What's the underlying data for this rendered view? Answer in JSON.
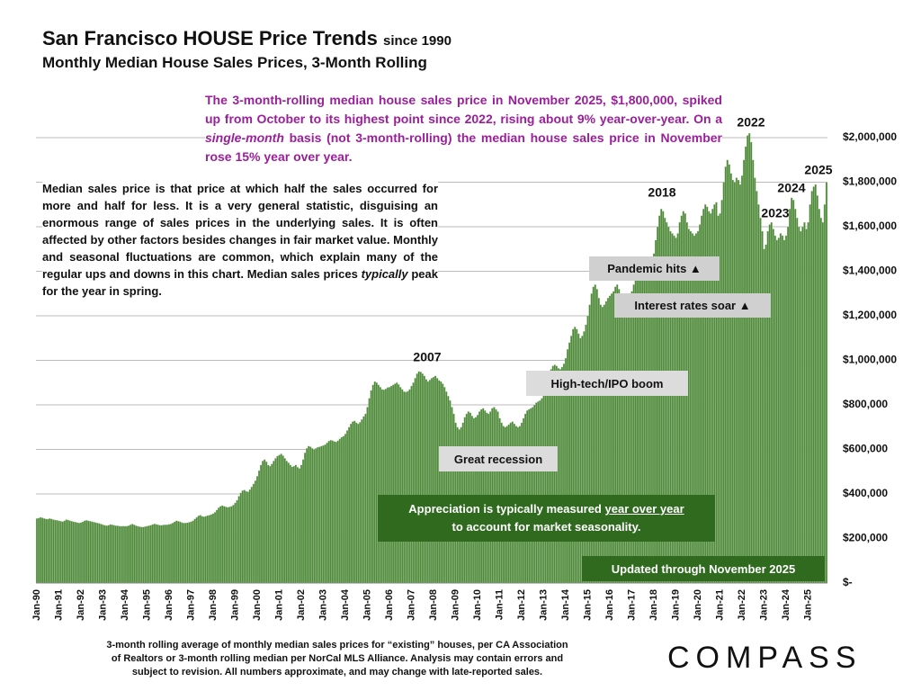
{
  "chart_data": {
    "type": "bar",
    "title": "San Francisco HOUSE Price Trends",
    "title_suffix": "since 1990",
    "subtitle": "Monthly Median House Sales Prices, 3-Month Rolling",
    "color": "#4e8a3a",
    "grid": true,
    "highlight_text": [
      "The 3-month-rolling median house sales price in November 2025, $1,800,000, spiked up from October to its highest point since 2022, rising about 9% year-over-year. On a ",
      "single-month",
      " basis (not 3-month-rolling) the median house sales price in November rose 15% year over year."
    ],
    "note_text": [
      "Median sales price is that price at which half the sales occurred for more and half for less. It is a very general statistic, disguising an enormous range of sales prices in the underlying sales. It is often affected by other factors besides changes in fair market value. Monthly and seasonal fluctuations are common, which explain many of the regular ups and downs in this chart. Median sales prices ",
      "typically",
      " peak for the year in spring."
    ],
    "year_labels": [
      "2007",
      "2018",
      "2022",
      "2023",
      "2024",
      "2025"
    ],
    "callouts": [
      "Pandemic hits ▲",
      "Interest rates soar ▲",
      "High-tech/IPO boom",
      "Great recession"
    ],
    "appreciation_text": [
      "Appreciation is typically measured ",
      "year over year",
      "to account for market seasonality."
    ],
    "updated_text": "Updated through November 2025",
    "footnote": [
      "3-month rolling average of monthly median sales prices for “existing” houses, per CA Association",
      "of Realtors or 3-month rolling median per NorCal MLS Alliance. Analysis may contain errors and",
      "subject to revision. All numbers approximate, and may change with late-reported sales."
    ],
    "brand": "COMPASS",
    "ylim": [
      0,
      2000000
    ],
    "yticks": [
      {
        "value": 0,
        "label": "$-"
      },
      {
        "value": 200000,
        "label": "$200,000"
      },
      {
        "value": 400000,
        "label": "$400,000"
      },
      {
        "value": 600000,
        "label": "$600,000"
      },
      {
        "value": 800000,
        "label": "$800,000"
      },
      {
        "value": 1000000,
        "label": "$1,000,000"
      },
      {
        "value": 1200000,
        "label": "$1,200,000"
      },
      {
        "value": 1400000,
        "label": "$1,400,000"
      },
      {
        "value": 1600000,
        "label": "$1,600,000"
      },
      {
        "value": 1800000,
        "label": "$1,800,000"
      },
      {
        "value": 2000000,
        "label": "$2,000,000"
      }
    ],
    "categories": [
      "Jan-90",
      null,
      null,
      null,
      null,
      null,
      null,
      null,
      null,
      null,
      null,
      null,
      "Jan-91",
      null,
      null,
      null,
      null,
      null,
      null,
      null,
      null,
      null,
      null,
      null,
      "Jan-92",
      null,
      null,
      null,
      null,
      null,
      null,
      null,
      null,
      null,
      null,
      null,
      "Jan-93",
      null,
      null,
      null,
      null,
      null,
      null,
      null,
      null,
      null,
      null,
      null,
      "Jan-94",
      null,
      null,
      null,
      null,
      null,
      null,
      null,
      null,
      null,
      null,
      null,
      "Jan-95",
      null,
      null,
      null,
      null,
      null,
      null,
      null,
      null,
      null,
      null,
      null,
      "Jan-96",
      null,
      null,
      null,
      null,
      null,
      null,
      null,
      null,
      null,
      null,
      null,
      "Jan-97",
      null,
      null,
      null,
      null,
      null,
      null,
      null,
      null,
      null,
      null,
      null,
      "Jan-98",
      null,
      null,
      null,
      null,
      null,
      null,
      null,
      null,
      null,
      null,
      null,
      "Jan-99",
      null,
      null,
      null,
      null,
      null,
      null,
      null,
      null,
      null,
      null,
      null,
      "Jan-00",
      null,
      null,
      null,
      null,
      null,
      null,
      null,
      null,
      null,
      null,
      null,
      "Jan-01",
      null,
      null,
      null,
      null,
      null,
      null,
      null,
      null,
      null,
      null,
      null,
      "Jan-02",
      null,
      null,
      null,
      null,
      null,
      null,
      null,
      null,
      null,
      null,
      null,
      "Jan-03",
      null,
      null,
      null,
      null,
      null,
      null,
      null,
      null,
      null,
      null,
      null,
      "Jan-04",
      null,
      null,
      null,
      null,
      null,
      null,
      null,
      null,
      null,
      null,
      null,
      "Jan-05",
      null,
      null,
      null,
      null,
      null,
      null,
      null,
      null,
      null,
      null,
      null,
      "Jan-06",
      null,
      null,
      null,
      null,
      null,
      null,
      null,
      null,
      null,
      null,
      null,
      "Jan-07",
      null,
      null,
      null,
      null,
      null,
      null,
      null,
      null,
      null,
      null,
      null,
      "Jan-08",
      null,
      null,
      null,
      null,
      null,
      null,
      null,
      null,
      null,
      null,
      null,
      "Jan-09",
      null,
      null,
      null,
      null,
      null,
      null,
      null,
      null,
      null,
      null,
      null,
      "Jan-10",
      null,
      null,
      null,
      null,
      null,
      null,
      null,
      null,
      null,
      null,
      null,
      "Jan-11",
      null,
      null,
      null,
      null,
      null,
      null,
      null,
      null,
      null,
      null,
      null,
      "Jan-12",
      null,
      null,
      null,
      null,
      null,
      null,
      null,
      null,
      null,
      null,
      null,
      "Jan-13",
      null,
      null,
      null,
      null,
      null,
      null,
      null,
      null,
      null,
      null,
      null,
      "Jan-14",
      null,
      null,
      null,
      null,
      null,
      null,
      null,
      null,
      null,
      null,
      null,
      "Jan-15",
      null,
      null,
      null,
      null,
      null,
      null,
      null,
      null,
      null,
      null,
      null,
      "Jan-16",
      null,
      null,
      null,
      null,
      null,
      null,
      null,
      null,
      null,
      null,
      null,
      "Jan-17",
      null,
      null,
      null,
      null,
      null,
      null,
      null,
      null,
      null,
      null,
      null,
      "Jan-18",
      null,
      null,
      null,
      null,
      null,
      null,
      null,
      null,
      null,
      null,
      null,
      "Jan-19",
      null,
      null,
      null,
      null,
      null,
      null,
      null,
      null,
      null,
      null,
      null,
      "Jan-20",
      null,
      null,
      null,
      null,
      null,
      null,
      null,
      null,
      null,
      null,
      null,
      "Jan-21",
      null,
      null,
      null,
      null,
      null,
      null,
      null,
      null,
      null,
      null,
      null,
      "Jan-22",
      null,
      null,
      null,
      null,
      null,
      null,
      null,
      null,
      null,
      null,
      null,
      "Jan-23",
      null,
      null,
      null,
      null,
      null,
      null,
      null,
      null,
      null,
      null,
      null,
      "Jan-24",
      null,
      null,
      null,
      null,
      null,
      null,
      null,
      null,
      null,
      null,
      null,
      "Jan-25",
      null,
      null,
      null,
      null,
      null,
      null,
      null,
      null,
      null,
      null
    ],
    "values": [
      290000,
      292000,
      295000,
      293000,
      290000,
      288000,
      287000,
      290000,
      288000,
      285000,
      283000,
      282000,
      280000,
      278000,
      276000,
      280000,
      285000,
      283000,
      280000,
      278000,
      275000,
      274000,
      272000,
      270000,
      272000,
      275000,
      280000,
      282000,
      280000,
      278000,
      276000,
      274000,
      272000,
      270000,
      268000,
      265000,
      262000,
      260000,
      258000,
      260000,
      263000,
      262000,
      260000,
      258000,
      257000,
      256000,
      255000,
      256000,
      255000,
      256000,
      258000,
      262000,
      265000,
      262000,
      258000,
      255000,
      253000,
      252000,
      252000,
      254000,
      256000,
      258000,
      260000,
      263000,
      266000,
      264000,
      262000,
      260000,
      260000,
      261000,
      262000,
      262000,
      264000,
      266000,
      270000,
      275000,
      280000,
      278000,
      275000,
      272000,
      270000,
      270000,
      271000,
      273000,
      276000,
      280000,
      288000,
      295000,
      302000,
      305000,
      300000,
      298000,
      300000,
      303000,
      305000,
      308000,
      312000,
      318000,
      328000,
      338000,
      345000,
      348000,
      345000,
      342000,
      340000,
      342000,
      345000,
      350000,
      360000,
      372000,
      390000,
      405000,
      415000,
      418000,
      412000,
      410000,
      420000,
      432000,
      445000,
      460000,
      480000,
      505000,
      530000,
      548000,
      555000,
      545000,
      530000,
      525000,
      535000,
      548000,
      560000,
      570000,
      575000,
      580000,
      572000,
      560000,
      548000,
      540000,
      530000,
      522000,
      525000,
      530000,
      520000,
      515000,
      530000,
      555000,
      585000,
      605000,
      615000,
      612000,
      605000,
      600000,
      605000,
      610000,
      612000,
      615000,
      618000,
      622000,
      630000,
      638000,
      642000,
      640000,
      636000,
      634000,
      640000,
      648000,
      655000,
      660000,
      670000,
      685000,
      700000,
      715000,
      725000,
      728000,
      720000,
      715000,
      722000,
      735000,
      748000,
      760000,
      790000,
      830000,
      865000,
      890000,
      905000,
      900000,
      890000,
      880000,
      870000,
      868000,
      872000,
      878000,
      880000,
      885000,
      890000,
      895000,
      900000,
      892000,
      880000,
      870000,
      860000,
      858000,
      862000,
      870000,
      885000,
      900000,
      920000,
      940000,
      950000,
      948000,
      940000,
      930000,
      915000,
      905000,
      912000,
      920000,
      925000,
      930000,
      920000,
      910000,
      905000,
      895000,
      880000,
      860000,
      840000,
      820000,
      790000,
      760000,
      720000,
      700000,
      690000,
      700000,
      720000,
      745000,
      760000,
      770000,
      765000,
      750000,
      740000,
      745000,
      755000,
      770000,
      780000,
      785000,
      775000,
      765000,
      760000,
      770000,
      785000,
      790000,
      780000,
      770000,
      740000,
      720000,
      705000,
      700000,
      705000,
      712000,
      720000,
      725000,
      715000,
      705000,
      700000,
      705000,
      720000,
      740000,
      760000,
      775000,
      780000,
      785000,
      790000,
      800000,
      810000,
      815000,
      820000,
      830000,
      850000,
      880000,
      910000,
      940000,
      960000,
      975000,
      980000,
      975000,
      965000,
      960000,
      970000,
      985000,
      1010000,
      1050000,
      1080000,
      1110000,
      1140000,
      1150000,
      1140000,
      1120000,
      1100000,
      1110000,
      1130000,
      1160000,
      1200000,
      1250000,
      1300000,
      1330000,
      1340000,
      1320000,
      1280000,
      1250000,
      1240000,
      1250000,
      1265000,
      1280000,
      1290000,
      1300000,
      1310000,
      1330000,
      1340000,
      1320000,
      1290000,
      1260000,
      1240000,
      1250000,
      1270000,
      1290000,
      1310000,
      1340000,
      1380000,
      1420000,
      1450000,
      1440000,
      1420000,
      1400000,
      1390000,
      1400000,
      1420000,
      1440000,
      1480000,
      1540000,
      1600000,
      1650000,
      1680000,
      1670000,
      1640000,
      1620000,
      1600000,
      1580000,
      1570000,
      1560000,
      1550000,
      1570000,
      1620000,
      1650000,
      1670000,
      1660000,
      1620000,
      1590000,
      1580000,
      1570000,
      1560000,
      1570000,
      1580000,
      1610000,
      1650000,
      1680000,
      1700000,
      1690000,
      1670000,
      1660000,
      1680000,
      1700000,
      1710000,
      1650000,
      1660000,
      1720000,
      1800000,
      1870000,
      1900000,
      1880000,
      1840000,
      1810000,
      1800000,
      1820000,
      1810000,
      1790000,
      1830000,
      1900000,
      1960000,
      2010000,
      2020000,
      1980000,
      1900000,
      1820000,
      1760000,
      1700000,
      1640000,
      1580000,
      1500000,
      1520000,
      1580000,
      1610000,
      1620000,
      1590000,
      1560000,
      1540000,
      1550000,
      1570000,
      1560000,
      1540000,
      1560000,
      1600000,
      1680000,
      1730000,
      1720000,
      1680000,
      1640000,
      1600000,
      1580000,
      1600000,
      1620000,
      1590000,
      1620000,
      1700000,
      1760000,
      1780000,
      1790000,
      1740000,
      1680000,
      1640000,
      1620000,
      1700000,
      1800000
    ]
  }
}
